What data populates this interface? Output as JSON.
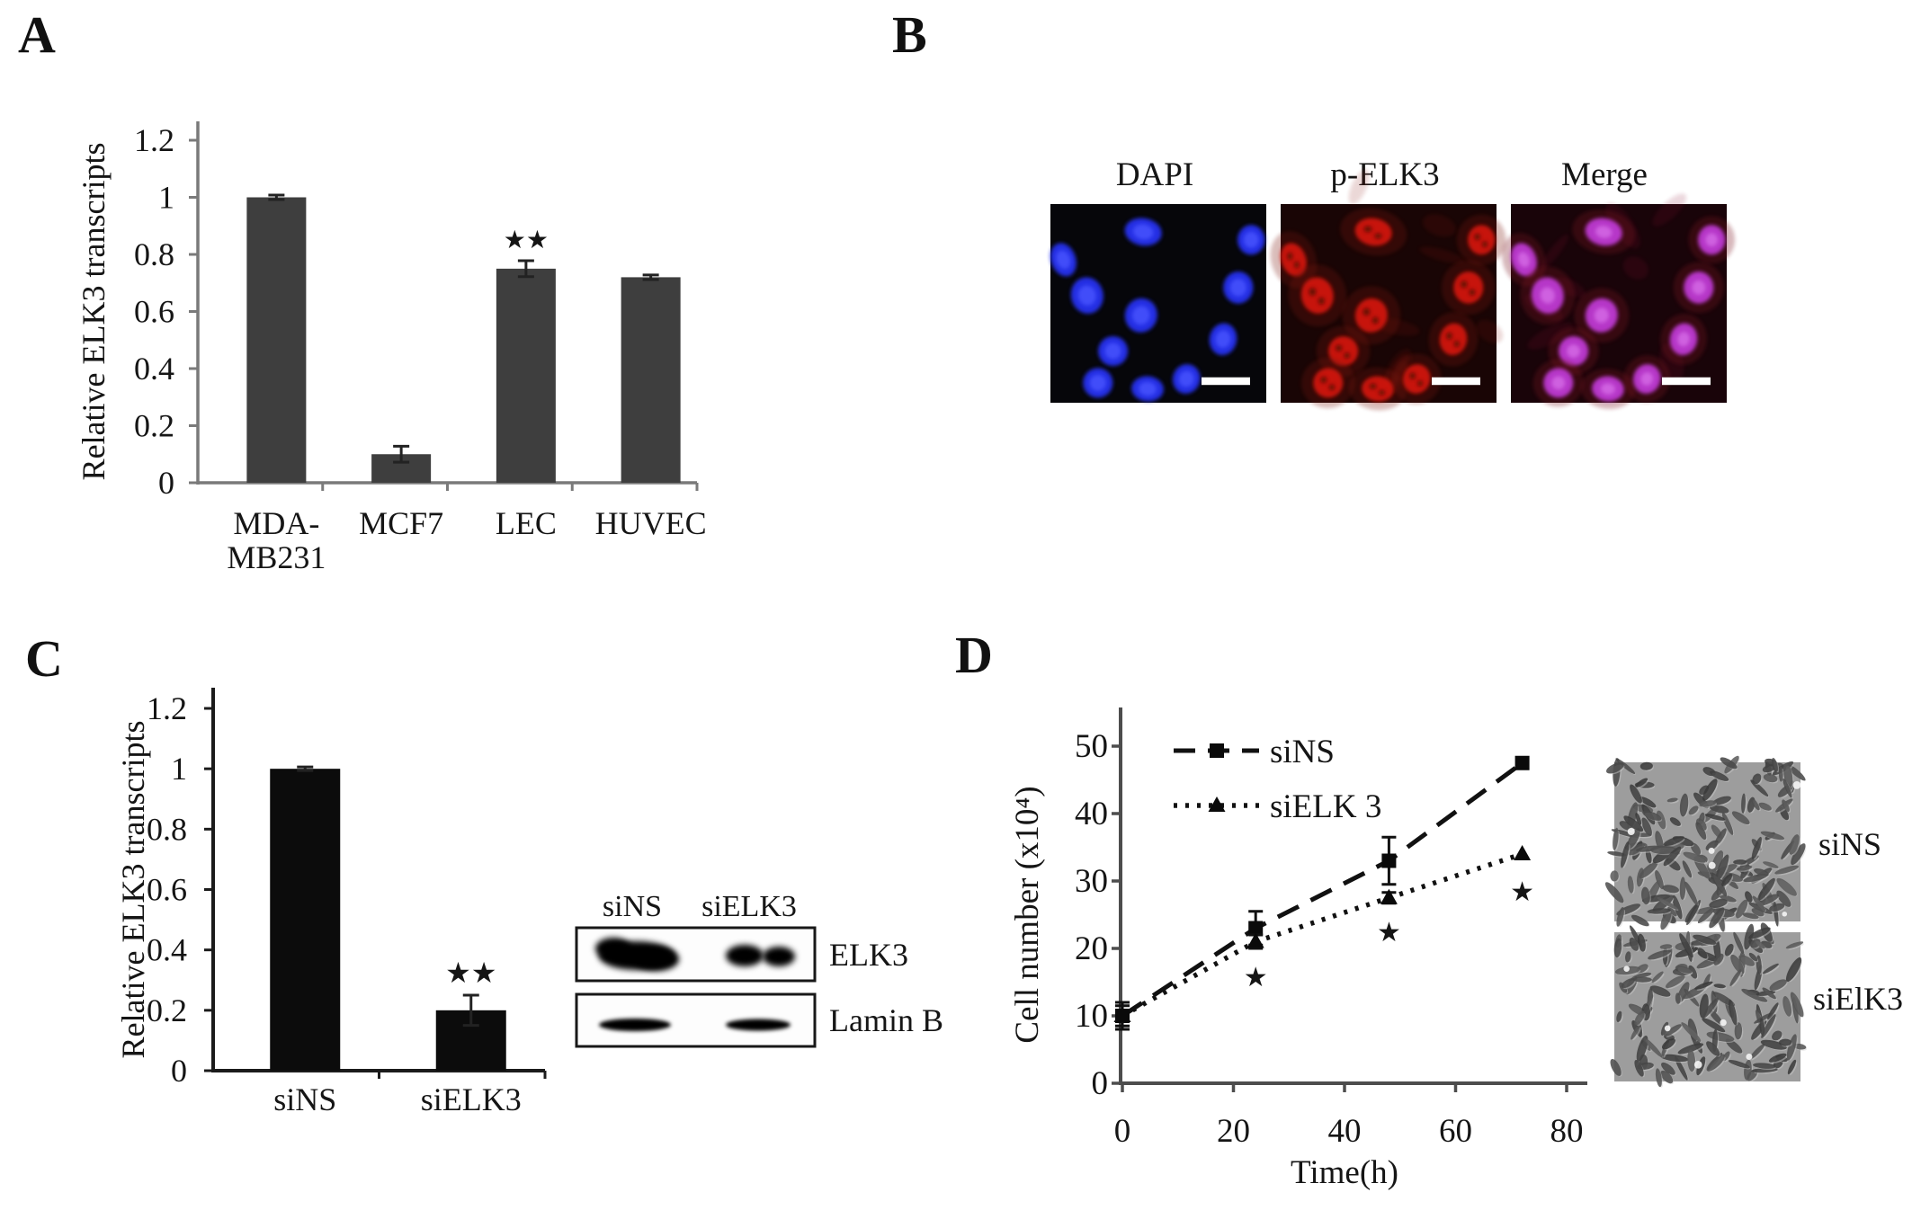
{
  "panels": {
    "a": "A",
    "b": "B",
    "c": "C",
    "d": "D"
  },
  "panel_b": {
    "labels": [
      "DAPI",
      "p-ELK3",
      "Merge"
    ]
  },
  "western_blot": {
    "lane_labels": [
      "siNS",
      "siELK3"
    ],
    "row_labels": [
      "ELK3",
      "Lamin B"
    ]
  },
  "micrographs": {
    "labels": [
      "siNS",
      "siElK3"
    ]
  },
  "chart_data": [
    {
      "id": "panel-a",
      "type": "bar",
      "title": "",
      "ylabel": "Relative ELK3 transcripts",
      "categories": [
        "MDA-\nMB231",
        "MCF7",
        "LEC",
        "HUVEC"
      ],
      "values": [
        1.0,
        0.1,
        0.75,
        0.72
      ],
      "errors": [
        0.008,
        0.028,
        0.028,
        0.008
      ],
      "significance": [
        "",
        "",
        "**",
        ""
      ],
      "ylim": [
        0,
        1.2
      ],
      "yticks": [
        "0",
        "0.2",
        "0.4",
        "0.6",
        "0.8",
        "1",
        "1.2"
      ],
      "grid": false,
      "bar_color": "#3e3e3e",
      "axis_color": "#7a7a7a"
    },
    {
      "id": "panel-c",
      "type": "bar",
      "title": "",
      "ylabel": "Relative ELK3 transcripts",
      "categories": [
        "siNS",
        "siELK3"
      ],
      "values": [
        1.0,
        0.2
      ],
      "errors": [
        0.006,
        0.05
      ],
      "significance": [
        "",
        "**"
      ],
      "ylim": [
        0,
        1.2
      ],
      "yticks": [
        "0",
        "0.2",
        "0.4",
        "0.6",
        "0.8",
        "1",
        "1.2"
      ],
      "grid": false,
      "bar_color": "#0c0c0c",
      "axis_color": "#1b1b1b"
    },
    {
      "id": "panel-d",
      "type": "line",
      "title": "",
      "xlabel": "Time(h)",
      "ylabel": "Cell number (x10⁴)",
      "xlim": [
        0,
        80
      ],
      "ylim": [
        0,
        50
      ],
      "xticks": [
        0,
        20,
        40,
        60,
        80
      ],
      "yticks": [
        0,
        10,
        20,
        30,
        40,
        50
      ],
      "legend_position": "top-left",
      "grid": false,
      "axis_color": "#4d4d4d",
      "series": [
        {
          "name": "siNS",
          "line_style": "dashed",
          "marker": "square",
          "x": [
            0,
            24,
            48,
            72
          ],
          "y": [
            10,
            23,
            33,
            47.5
          ],
          "errors": [
            2,
            2.5,
            3.5,
            0
          ]
        },
        {
          "name": "siELK 3",
          "line_style": "dotted",
          "marker": "triangle",
          "x": [
            0,
            24,
            48,
            72
          ],
          "y": [
            10,
            21,
            27.5,
            34
          ],
          "errors": [
            1.5,
            1,
            0.8,
            0
          ]
        }
      ],
      "significance_stars": [
        {
          "x": 24,
          "y": 16
        },
        {
          "x": 48,
          "y": 22.7
        },
        {
          "x": 72,
          "y": 28.7
        }
      ]
    }
  ]
}
